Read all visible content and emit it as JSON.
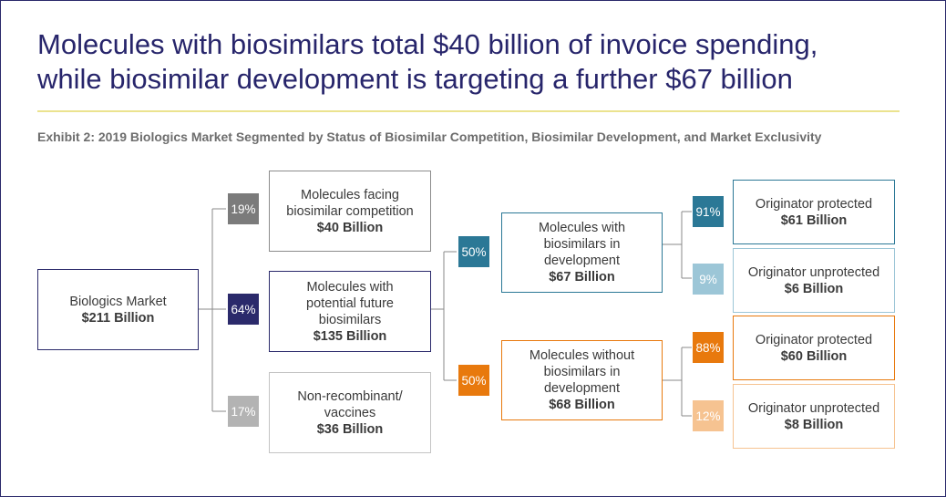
{
  "title_line1": "Molecules with biosimilars total $40 billion of invoice spending,",
  "title_line2": "while biosimilar development is targeting a further $67 billion",
  "subtitle": "Exhibit 2: 2019 Biologics Market Segmented by Status of Biosimilar Competition, Biosimilar Development, and Market Exclusivity",
  "colors": {
    "navy": "#2b2a6b",
    "gray_dark": "#7b7b7b",
    "gray_light": "#b3b3b3",
    "teal": "#2b7896",
    "teal_light": "#9cc6d7",
    "orange": "#e8790d",
    "orange_light": "#f6c391",
    "connector": "#8a8a8a"
  },
  "root": {
    "line1": "Biologics Market",
    "value": "$211 Billion"
  },
  "level1": [
    {
      "pct": "19%",
      "lines": [
        "Molecules facing",
        "biosimilar competition"
      ],
      "value": "$40 Billion"
    },
    {
      "pct": "64%",
      "lines": [
        "Molecules with",
        "potential future",
        "biosimilars"
      ],
      "value": "$135 Billion"
    },
    {
      "pct": "17%",
      "lines": [
        "Non-recombinant/",
        "vaccines"
      ],
      "value": "$36 Billion"
    }
  ],
  "level2": [
    {
      "pct": "50%",
      "lines": [
        "Molecules with",
        "biosimilars in",
        "development"
      ],
      "value": "$67 Billion"
    },
    {
      "pct": "50%",
      "lines": [
        "Molecules without",
        "biosimilars in",
        "development"
      ],
      "value": "$68 Billion"
    }
  ],
  "level3": [
    {
      "pct": "91%",
      "line": "Originator protected",
      "value": "$61 Billion"
    },
    {
      "pct": "9%",
      "line": "Originator unprotected",
      "value": "$6 Billion"
    },
    {
      "pct": "88%",
      "line": "Originator protected",
      "value": "$60 Billion"
    },
    {
      "pct": "12%",
      "line": "Originator unprotected",
      "value": "$8 Billion"
    }
  ]
}
